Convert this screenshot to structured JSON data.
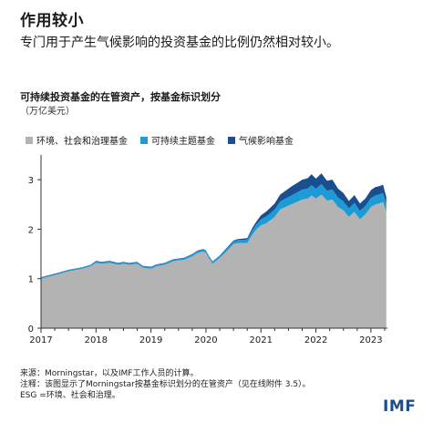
{
  "header": {
    "headline": "作用较小",
    "subhead": "专门用于产生气候影响的投资基金的比例仍然相对较小。"
  },
  "chart_data": {
    "type": "area",
    "title": "可持续投资基金的在管资产，按基金标识划分",
    "unit": "（万亿美元）",
    "xlabel": "",
    "ylabel": "",
    "ylim": [
      0,
      3.5
    ],
    "xlim": [
      2017,
      2023.3
    ],
    "yticks": [
      "0",
      "1",
      "2",
      "3"
    ],
    "xticks": [
      "2017",
      "2018",
      "2019",
      "2020",
      "2021",
      "2022",
      "2023"
    ],
    "legend_position": "top",
    "stacked": true,
    "x": [
      2017.0,
      2017.25,
      2017.5,
      2017.75,
      2017.9,
      2018.0,
      2018.1,
      2018.25,
      2018.4,
      2018.5,
      2018.6,
      2018.75,
      2018.85,
      2019.0,
      2019.1,
      2019.25,
      2019.4,
      2019.5,
      2019.6,
      2019.75,
      2019.85,
      2019.95,
      2020.0,
      2020.05,
      2020.12,
      2020.25,
      2020.4,
      2020.5,
      2020.58,
      2020.75,
      2020.85,
      2020.92,
      2021.0,
      2021.1,
      2021.25,
      2021.35,
      2021.45,
      2021.55,
      2021.65,
      2021.75,
      2021.85,
      2021.92,
      2022.0,
      2022.1,
      2022.2,
      2022.3,
      2022.4,
      2022.5,
      2022.6,
      2022.7,
      2022.8,
      2022.9,
      2023.0,
      2023.08,
      2023.15,
      2023.22,
      2023.28
    ],
    "series": [
      {
        "name": "环境、社会和治理基金",
        "color": "#b3b3b3",
        "values": [
          1.0,
          1.07,
          1.15,
          1.2,
          1.25,
          1.32,
          1.3,
          1.32,
          1.28,
          1.3,
          1.28,
          1.3,
          1.22,
          1.2,
          1.25,
          1.28,
          1.35,
          1.37,
          1.38,
          1.45,
          1.52,
          1.55,
          1.52,
          1.42,
          1.3,
          1.42,
          1.58,
          1.7,
          1.72,
          1.72,
          1.9,
          2.0,
          2.08,
          2.12,
          2.25,
          2.4,
          2.45,
          2.5,
          2.55,
          2.6,
          2.62,
          2.68,
          2.62,
          2.7,
          2.58,
          2.6,
          2.45,
          2.38,
          2.25,
          2.35,
          2.2,
          2.3,
          2.45,
          2.5,
          2.52,
          2.55,
          2.35
        ]
      },
      {
        "name": "可持续主题基金",
        "color": "#1d9bd7",
        "values": [
          0.02,
          0.02,
          0.02,
          0.02,
          0.02,
          0.03,
          0.03,
          0.03,
          0.03,
          0.03,
          0.03,
          0.03,
          0.03,
          0.03,
          0.03,
          0.03,
          0.03,
          0.03,
          0.03,
          0.04,
          0.04,
          0.04,
          0.04,
          0.04,
          0.04,
          0.04,
          0.05,
          0.05,
          0.06,
          0.07,
          0.09,
          0.1,
          0.12,
          0.14,
          0.15,
          0.16,
          0.17,
          0.18,
          0.19,
          0.2,
          0.2,
          0.21,
          0.2,
          0.21,
          0.2,
          0.2,
          0.19,
          0.18,
          0.17,
          0.18,
          0.17,
          0.17,
          0.18,
          0.18,
          0.18,
          0.18,
          0.16
        ]
      },
      {
        "name": "气候影响基金",
        "color": "#1a4f8f",
        "values": [
          0.01,
          0.01,
          0.01,
          0.01,
          0.01,
          0.01,
          0.01,
          0.01,
          0.01,
          0.01,
          0.01,
          0.01,
          0.01,
          0.01,
          0.01,
          0.01,
          0.01,
          0.01,
          0.01,
          0.01,
          0.01,
          0.01,
          0.01,
          0.01,
          0.01,
          0.01,
          0.02,
          0.02,
          0.02,
          0.03,
          0.05,
          0.06,
          0.08,
          0.1,
          0.12,
          0.14,
          0.16,
          0.18,
          0.19,
          0.2,
          0.21,
          0.22,
          0.2,
          0.22,
          0.2,
          0.2,
          0.18,
          0.17,
          0.15,
          0.16,
          0.15,
          0.15,
          0.16,
          0.17,
          0.17,
          0.17,
          0.14
        ]
      }
    ]
  },
  "notes": {
    "source": "来源：Morningstar，以及IMF工作人员的计算。",
    "note": "注释：该图显示了Morningstar按基金标识划分的在管资产（见在线附件 3.5）。",
    "esg": "ESG =环境、社会和治理。"
  },
  "logo": "IMF"
}
